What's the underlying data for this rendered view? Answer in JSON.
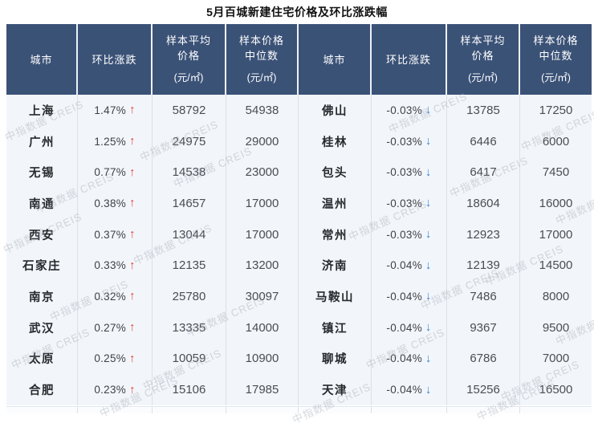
{
  "title": "5月百城新建住宅价格及环比涨跌幅",
  "watermark": {
    "text": "中指数据 CREIS"
  },
  "glyphs": {
    "arrow_up": "↑",
    "arrow_down": "↓"
  },
  "colors": {
    "header_bg": "#3b5277",
    "row_bg": "#f2f6fa",
    "up_arrow": "#e23b31",
    "down_arrow": "#3d85d8",
    "grid_line": "#dbe1e9"
  },
  "table": {
    "headers": {
      "city": "城市",
      "change": "环比涨跌",
      "avg_line1": "样本平均",
      "avg_line2": "价格",
      "median_line1": "样本价格",
      "median_line2": "中位数",
      "unit": "(元/㎡)"
    },
    "left": [
      {
        "city": "上海",
        "change": "1.47%",
        "direction": "up",
        "avg": "58792",
        "median": "54938"
      },
      {
        "city": "广州",
        "change": "1.25%",
        "direction": "up",
        "avg": "24975",
        "median": "29000"
      },
      {
        "city": "无锡",
        "change": "0.77%",
        "direction": "up",
        "avg": "14538",
        "median": "23000"
      },
      {
        "city": "南通",
        "change": "0.38%",
        "direction": "up",
        "avg": "14657",
        "median": "17000"
      },
      {
        "city": "西安",
        "change": "0.37%",
        "direction": "up",
        "avg": "13044",
        "median": "17000"
      },
      {
        "city": "石家庄",
        "change": "0.33%",
        "direction": "up",
        "avg": "12135",
        "median": "13200"
      },
      {
        "city": "南京",
        "change": "0.32%",
        "direction": "up",
        "avg": "25780",
        "median": "30097"
      },
      {
        "city": "武汉",
        "change": "0.27%",
        "direction": "up",
        "avg": "13335",
        "median": "14000"
      },
      {
        "city": "太原",
        "change": "0.25%",
        "direction": "up",
        "avg": "10059",
        "median": "10900"
      },
      {
        "city": "合肥",
        "change": "0.23%",
        "direction": "up",
        "avg": "15106",
        "median": "17985"
      }
    ],
    "right": [
      {
        "city": "佛山",
        "change": "-0.03%",
        "direction": "down",
        "avg": "13785",
        "median": "17250"
      },
      {
        "city": "桂林",
        "change": "-0.03%",
        "direction": "down",
        "avg": "6446",
        "median": "6000"
      },
      {
        "city": "包头",
        "change": "-0.03%",
        "direction": "down",
        "avg": "6417",
        "median": "7450"
      },
      {
        "city": "温州",
        "change": "-0.03%",
        "direction": "down",
        "avg": "18604",
        "median": "16000"
      },
      {
        "city": "常州",
        "change": "-0.03%",
        "direction": "down",
        "avg": "12923",
        "median": "17000"
      },
      {
        "city": "济南",
        "change": "-0.04%",
        "direction": "down",
        "avg": "12139",
        "median": "14500"
      },
      {
        "city": "马鞍山",
        "change": "-0.04%",
        "direction": "down",
        "avg": "7486",
        "median": "8000"
      },
      {
        "city": "镇江",
        "change": "-0.04%",
        "direction": "down",
        "avg": "9367",
        "median": "9500"
      },
      {
        "city": "聊城",
        "change": "-0.04%",
        "direction": "down",
        "avg": "6786",
        "median": "7000"
      },
      {
        "city": "天津",
        "change": "-0.04%",
        "direction": "down",
        "avg": "15256",
        "median": "16500"
      }
    ]
  },
  "chart_data": {
    "type": "table",
    "title": "5月百城新建住宅价格及环比涨跌幅",
    "columns": [
      "城市",
      "环比涨跌",
      "样本平均价格(元/㎡)",
      "样本价格中位数(元/㎡)",
      "城市",
      "环比涨跌",
      "样本平均价格(元/㎡)",
      "样本价格中位数(元/㎡)"
    ],
    "rows": [
      [
        "上海",
        "1.47% ↑",
        58792,
        54938,
        "佛山",
        "-0.03% ↓",
        13785,
        17250
      ],
      [
        "广州",
        "1.25% ↑",
        24975,
        29000,
        "桂林",
        "-0.03% ↓",
        6446,
        6000
      ],
      [
        "无锡",
        "0.77% ↑",
        14538,
        23000,
        "包头",
        "-0.03% ↓",
        6417,
        7450
      ],
      [
        "南通",
        "0.38% ↑",
        14657,
        17000,
        "温州",
        "-0.03% ↓",
        18604,
        16000
      ],
      [
        "西安",
        "0.37% ↑",
        13044,
        17000,
        "常州",
        "-0.03% ↓",
        12923,
        17000
      ],
      [
        "石家庄",
        "0.33% ↑",
        12135,
        13200,
        "济南",
        "-0.04% ↓",
        12139,
        14500
      ],
      [
        "南京",
        "0.32% ↑",
        25780,
        30097,
        "马鞍山",
        "-0.04% ↓",
        7486,
        8000
      ],
      [
        "武汉",
        "0.27% ↑",
        13335,
        14000,
        "镇江",
        "-0.04% ↓",
        9367,
        9500
      ],
      [
        "太原",
        "0.25% ↑",
        10059,
        10900,
        "聊城",
        "-0.04% ↓",
        6786,
        7000
      ],
      [
        "合肥",
        "0.23% ↑",
        15106,
        17985,
        "天津",
        "-0.04% ↓",
        15256,
        16500
      ]
    ]
  }
}
